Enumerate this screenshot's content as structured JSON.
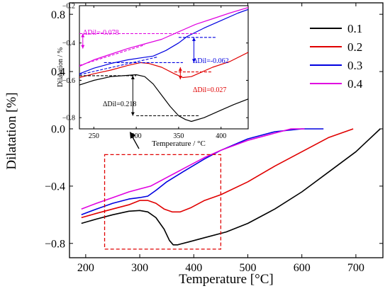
{
  "chart_data": [
    {
      "id": "main",
      "type": "line",
      "xlabel": "Temperature [°C]",
      "ylabel": "Dilatation [%]",
      "xlim": [
        170,
        750
      ],
      "ylim": [
        -0.9,
        0.88
      ],
      "xticks": [
        200,
        300,
        400,
        500,
        600,
        700
      ],
      "yticks": [
        -0.8,
        -0.4,
        0.0,
        0.4,
        0.8
      ],
      "ytick_labels": [
        "−0.8",
        "−0.4",
        "0.0",
        "0.4",
        "0.8"
      ],
      "legend_position": "top-right",
      "series": [
        {
          "name": "0.1",
          "color": "#000000",
          "points": [
            [
              192,
              -0.66
            ],
            [
              220,
              -0.63
            ],
            [
              250,
              -0.6
            ],
            [
              280,
              -0.575
            ],
            [
              300,
              -0.57
            ],
            [
              315,
              -0.58
            ],
            [
              330,
              -0.62
            ],
            [
              345,
              -0.7
            ],
            [
              355,
              -0.78
            ],
            [
              362,
              -0.81
            ],
            [
              370,
              -0.81
            ],
            [
              390,
              -0.79
            ],
            [
              420,
              -0.76
            ],
            [
              460,
              -0.72
            ],
            [
              500,
              -0.66
            ],
            [
              550,
              -0.56
            ],
            [
              600,
              -0.44
            ],
            [
              650,
              -0.3
            ],
            [
              700,
              -0.16
            ],
            [
              745,
              0.0
            ]
          ]
        },
        {
          "name": "0.2",
          "color": "#e00000",
          "points": [
            [
              192,
              -0.62
            ],
            [
              220,
              -0.59
            ],
            [
              250,
              -0.56
            ],
            [
              280,
              -0.53
            ],
            [
              300,
              -0.5
            ],
            [
              315,
              -0.5
            ],
            [
              330,
              -0.52
            ],
            [
              345,
              -0.56
            ],
            [
              360,
              -0.58
            ],
            [
              375,
              -0.58
            ],
            [
              395,
              -0.55
            ],
            [
              420,
              -0.5
            ],
            [
              450,
              -0.46
            ],
            [
              500,
              -0.37
            ],
            [
              550,
              -0.26
            ],
            [
              600,
              -0.16
            ],
            [
              650,
              -0.06
            ],
            [
              695,
              0.0
            ]
          ]
        },
        {
          "name": "0.3",
          "color": "#0000e0",
          "points": [
            [
              192,
              -0.6
            ],
            [
              220,
              -0.56
            ],
            [
              250,
              -0.52
            ],
            [
              280,
              -0.49
            ],
            [
              300,
              -0.48
            ],
            [
              315,
              -0.47
            ],
            [
              330,
              -0.43
            ],
            [
              350,
              -0.37
            ],
            [
              380,
              -0.3
            ],
            [
              420,
              -0.21
            ],
            [
              450,
              -0.15
            ],
            [
              500,
              -0.07
            ],
            [
              550,
              -0.02
            ],
            [
              600,
              0.0
            ],
            [
              640,
              0.0
            ]
          ]
        },
        {
          "name": "0.4",
          "color": "#e000e0",
          "points": [
            [
              192,
              -0.56
            ],
            [
              220,
              -0.52
            ],
            [
              250,
              -0.48
            ],
            [
              280,
              -0.44
            ],
            [
              300,
              -0.42
            ],
            [
              320,
              -0.4
            ],
            [
              350,
              -0.34
            ],
            [
              380,
              -0.28
            ],
            [
              420,
              -0.2
            ],
            [
              450,
              -0.15
            ],
            [
              500,
              -0.08
            ],
            [
              550,
              -0.03
            ],
            [
              580,
              0.0
            ],
            [
              605,
              0.0
            ]
          ]
        }
      ],
      "highlight_box": {
        "x": [
          235,
          450
        ],
        "y": [
          -0.84,
          -0.18
        ]
      }
    },
    {
      "id": "inset",
      "type": "line",
      "xlabel": "Temperature / °C",
      "ylabel": "Dilatation / %",
      "xlim": [
        233,
        432
      ],
      "ylim": [
        -0.86,
        -0.2
      ],
      "xticks": [
        250,
        300,
        350,
        400
      ],
      "yticks": [
        -0.8,
        -0.6,
        -0.4,
        -0.2
      ],
      "ytick_labels": [
        "−0.8",
        "−0.6",
        "−0.4",
        "−0.2"
      ],
      "series": [
        {
          "name": "0.1",
          "color": "#000000",
          "points": [
            [
              233,
              -0.625
            ],
            [
              250,
              -0.6
            ],
            [
              270,
              -0.58
            ],
            [
              285,
              -0.575
            ],
            [
              300,
              -0.57
            ],
            [
              310,
              -0.58
            ],
            [
              320,
              -0.62
            ],
            [
              330,
              -0.68
            ],
            [
              340,
              -0.74
            ],
            [
              350,
              -0.79
            ],
            [
              358,
              -0.81
            ],
            [
              365,
              -0.82
            ],
            [
              380,
              -0.8
            ],
            [
              400,
              -0.76
            ],
            [
              415,
              -0.73
            ],
            [
              432,
              -0.7
            ]
          ]
        },
        {
          "name": "0.2",
          "color": "#e00000",
          "points": [
            [
              233,
              -0.585
            ],
            [
              250,
              -0.565
            ],
            [
              270,
              -0.545
            ],
            [
              290,
              -0.52
            ],
            [
              305,
              -0.505
            ],
            [
              315,
              -0.51
            ],
            [
              330,
              -0.53
            ],
            [
              345,
              -0.565
            ],
            [
              355,
              -0.585
            ],
            [
              365,
              -0.58
            ],
            [
              375,
              -0.56
            ],
            [
              390,
              -0.53
            ],
            [
              410,
              -0.5
            ],
            [
              432,
              -0.45
            ]
          ]
        },
        {
          "name": "0.3",
          "color": "#0000e0",
          "points": [
            [
              233,
              -0.565
            ],
            [
              250,
              -0.535
            ],
            [
              270,
              -0.51
            ],
            [
              290,
              -0.49
            ],
            [
              305,
              -0.48
            ],
            [
              320,
              -0.47
            ],
            [
              335,
              -0.44
            ],
            [
              350,
              -0.4
            ],
            [
              360,
              -0.365
            ],
            [
              380,
              -0.32
            ],
            [
              400,
              -0.28
            ],
            [
              420,
              -0.24
            ],
            [
              432,
              -0.22
            ]
          ]
        },
        {
          "name": "0.4",
          "color": "#e000e0",
          "points": [
            [
              233,
              -0.525
            ],
            [
              250,
              -0.49
            ],
            [
              270,
              -0.46
            ],
            [
              290,
              -0.43
            ],
            [
              310,
              -0.405
            ],
            [
              330,
              -0.38
            ],
            [
              350,
              -0.34
            ],
            [
              370,
              -0.3
            ],
            [
              390,
              -0.27
            ],
            [
              410,
              -0.24
            ],
            [
              432,
              -0.21
            ]
          ]
        }
      ],
      "guides": [
        {
          "color": "#000000",
          "points": [
            [
              233,
              -0.575
            ],
            [
              300,
              -0.575
            ]
          ]
        },
        {
          "color": "#000000",
          "points": [
            [
              300,
              -0.79
            ],
            [
              375,
              -0.79
            ]
          ]
        },
        {
          "color": "#e00000",
          "points": [
            [
              345,
              -0.555
            ],
            [
              390,
              -0.555
            ]
          ]
        },
        {
          "color": "#0000e0",
          "points": [
            [
              262,
              -0.505
            ],
            [
              355,
              -0.505
            ]
          ]
        },
        {
          "color": "#0000e0",
          "points": [
            [
              350,
              -0.37
            ],
            [
              395,
              -0.37
            ]
          ]
        },
        {
          "color": "#0000e0",
          "points": [
            [
              233,
              -0.57
            ],
            [
              325,
              -0.475
            ]
          ]
        },
        {
          "color": "#e000e0",
          "points": [
            [
              233,
              -0.35
            ],
            [
              375,
              -0.35
            ]
          ]
        },
        {
          "color": "#e000e0",
          "points": [
            [
              233,
              -0.52
            ],
            [
              310,
              -0.41
            ]
          ]
        }
      ],
      "dimensions": [
        {
          "color": "#000000",
          "x": 296,
          "y1": -0.575,
          "y2": -0.79
        },
        {
          "color": "#e00000",
          "x": 352,
          "y1": -0.53,
          "y2": -0.595
        },
        {
          "color": "#0000e0",
          "x": 368,
          "y1": -0.37,
          "y2": -0.505
        },
        {
          "color": "#e000e0",
          "x": 237,
          "y1": -0.35,
          "y2": -0.43
        }
      ],
      "annotations": [
        {
          "text": "ΔDil=-0.078",
          "color": "#e000e0"
        },
        {
          "text": "ΔDil=-0.062",
          "color": "#0000e0"
        },
        {
          "text": "ΔDil=0.027",
          "color": "#e00000"
        },
        {
          "text": "ΔDil=0.218",
          "color": "#000000"
        }
      ]
    }
  ]
}
